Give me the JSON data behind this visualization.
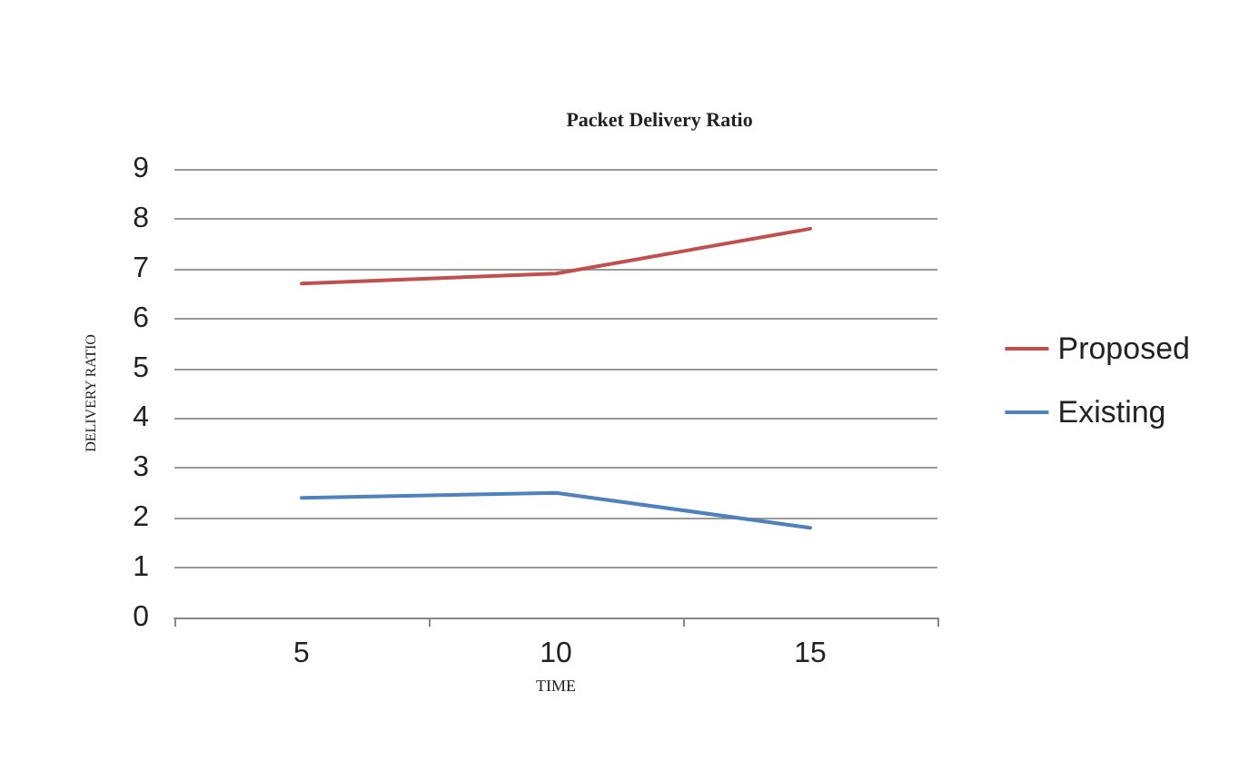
{
  "chart_data": {
    "type": "line",
    "title": "Packet Delivery Ratio",
    "xlabel": "TIME",
    "ylabel": "DELIVERY RATIO",
    "categories": [
      "5",
      "10",
      "15"
    ],
    "series": [
      {
        "name": "Proposed",
        "color": "#c0504d",
        "values": [
          6.7,
          6.9,
          7.8
        ]
      },
      {
        "name": "Existing",
        "color": "#4f81bd",
        "values": [
          2.4,
          2.5,
          1.8
        ]
      }
    ],
    "ylim": [
      0,
      9
    ],
    "yticks": [
      0,
      1,
      2,
      3,
      4,
      5,
      6,
      7,
      8,
      9
    ],
    "grid": "y",
    "legend": "right",
    "marker": "none"
  }
}
